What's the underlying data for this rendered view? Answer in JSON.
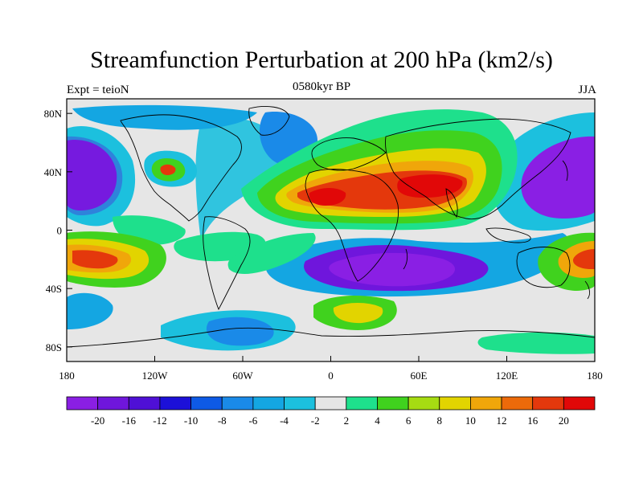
{
  "title": "Streamfunction Perturbation at 200 hPa (km2/s)",
  "subtitle_left": "Expt = teioN",
  "subtitle_center": "0580kyr BP",
  "subtitle_right": "JJA",
  "map": {
    "projection": "cylindrical equidistant",
    "lon_range": [
      -180,
      180
    ],
    "lat_range": [
      -90,
      90
    ],
    "background_color": "#e6e6e6",
    "x_ticks": [
      {
        "lon": -180,
        "label": "180"
      },
      {
        "lon": -120,
        "label": "120W"
      },
      {
        "lon": -60,
        "label": "60W"
      },
      {
        "lon": 0,
        "label": "0"
      },
      {
        "lon": 60,
        "label": "60E"
      },
      {
        "lon": 120,
        "label": "120E"
      },
      {
        "lon": 180,
        "label": "180"
      }
    ],
    "y_ticks": [
      {
        "lat": 80,
        "label": "80N"
      },
      {
        "lat": 40,
        "label": "40N"
      },
      {
        "lat": 0,
        "label": "0"
      },
      {
        "lat": -40,
        "label": "40S"
      },
      {
        "lat": -80,
        "label": "80S"
      }
    ],
    "features": [
      {
        "name": "north-pacific-low",
        "lon": -175,
        "lat": 38,
        "level": -20
      },
      {
        "name": "west-pacific-low",
        "lon": 165,
        "lat": 35,
        "level": -20
      },
      {
        "name": "south-atlantic-indian-low",
        "lon": 45,
        "lat": -28,
        "level": -20
      },
      {
        "name": "eurasia-high",
        "lon": 70,
        "lat": 32,
        "level": 20
      },
      {
        "name": "north-africa-high",
        "lon": 5,
        "lat": 28,
        "level": 16
      },
      {
        "name": "south-pacific-high-west",
        "lon": -150,
        "lat": -20,
        "level": 20
      },
      {
        "name": "south-pacific-high-east",
        "lon": 175,
        "lat": -20,
        "level": 16
      },
      {
        "name": "western-us-high",
        "lon": -112,
        "lat": 42,
        "level": 12
      },
      {
        "name": "south-atlantic-high",
        "lon": 25,
        "lat": -58,
        "level": 8
      },
      {
        "name": "antarctic-low",
        "lon": -60,
        "lat": -68,
        "level": -8
      }
    ]
  },
  "colorbar": {
    "labels": [
      "-20",
      "-16",
      "-12",
      "-10",
      "-8",
      "-6",
      "-4",
      "-2",
      "2",
      "4",
      "6",
      "8",
      "10",
      "12",
      "16",
      "20"
    ],
    "colors": [
      "#8a1fe4",
      "#6f16dc",
      "#4f10d6",
      "#1c10d8",
      "#0e5ae6",
      "#1a8ae8",
      "#14a6e2",
      "#1cc0de",
      "#e6e6e6",
      "#1ee08c",
      "#40d21e",
      "#a6dc12",
      "#e2d400",
      "#f0a60a",
      "#ec6a0a",
      "#e4380c",
      "#e10808"
    ]
  },
  "chart_data": {
    "type": "heatmap",
    "title": "Streamfunction Perturbation at 200 hPa (km2/s)",
    "xlabel": "",
    "ylabel": "",
    "x_range": [
      -180,
      180
    ],
    "y_range": [
      -90,
      90
    ],
    "levels": [
      -20,
      -16,
      -12,
      -10,
      -8,
      -6,
      -4,
      -2,
      2,
      4,
      6,
      8,
      10,
      12,
      16,
      20
    ]
  }
}
